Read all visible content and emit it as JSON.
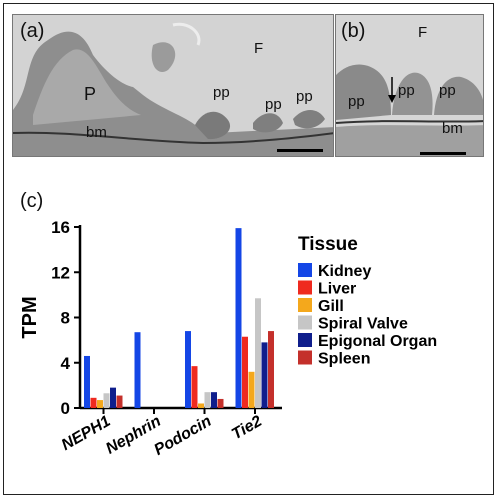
{
  "panels": {
    "a": {
      "letter": "(a)",
      "labels": {
        "F": "F",
        "P": "P",
        "pp1": "pp",
        "pp2": "pp",
        "pp3": "pp",
        "bm": "bm"
      }
    },
    "b": {
      "letter": "(b)",
      "labels": {
        "F": "F",
        "pp1": "pp",
        "pp2": "pp",
        "pp3": "pp",
        "bm": "bm"
      }
    },
    "c": {
      "letter": "(c)"
    }
  },
  "chart_data": {
    "type": "bar",
    "categories": [
      "NEPH1",
      "Nephrin",
      "Podocin",
      "Tie2"
    ],
    "ylabel": "TPM",
    "xlabel": "",
    "yticks": [
      "0",
      "4",
      "8",
      "12",
      "16"
    ],
    "ylim": [
      0,
      16
    ],
    "legend_title": "Tissue",
    "legend_position": "right",
    "series": [
      {
        "name": "Kidney",
        "color": "#1446e6",
        "values": [
          4.6,
          6.7,
          6.8,
          15.9
        ]
      },
      {
        "name": "Liver",
        "color": "#ef2a1f",
        "values": [
          0.9,
          0,
          3.7,
          6.3
        ]
      },
      {
        "name": "Gill",
        "color": "#f4a81c",
        "values": [
          0.7,
          0,
          0.4,
          3.2
        ]
      },
      {
        "name": "Spiral Valve",
        "color": "#c6c6c6",
        "values": [
          1.3,
          0,
          1.4,
          9.7
        ]
      },
      {
        "name": "Epigonal Organ",
        "color": "#0f1e8c",
        "values": [
          1.8,
          0,
          1.4,
          5.8
        ]
      },
      {
        "name": "Spleen",
        "color": "#c4302b",
        "values": [
          1.1,
          0,
          0.8,
          6.8
        ]
      }
    ]
  }
}
